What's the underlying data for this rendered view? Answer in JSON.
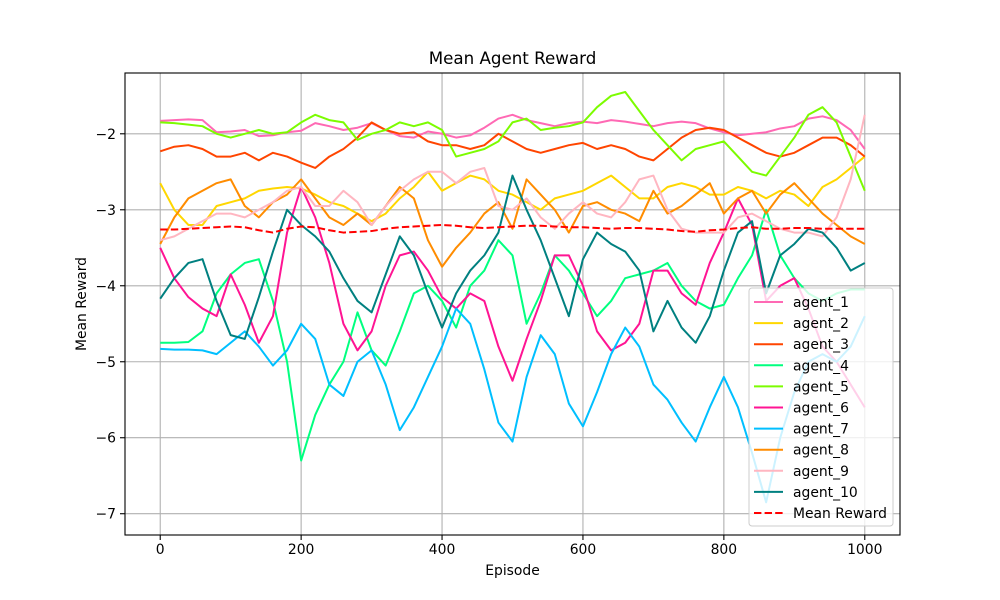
{
  "chart_data": {
    "type": "line",
    "title": "Mean Agent Reward",
    "xlabel": "Episode",
    "ylabel": "Mean Reward",
    "xlim": [
      -50,
      1050
    ],
    "ylim": [
      -7.28,
      -1.2
    ],
    "x_ticks": [
      0,
      200,
      400,
      600,
      800,
      1000
    ],
    "x_tick_labels": [
      "0",
      "200",
      "400",
      "600",
      "800",
      "1000"
    ],
    "y_ticks": [
      -7,
      -6,
      -5,
      -4,
      -3,
      -2
    ],
    "y_tick_labels": [
      "−7",
      "−6",
      "−5",
      "−4",
      "−3",
      "−2"
    ],
    "grid": true,
    "legend_position": "lower right",
    "x": [
      0,
      20,
      40,
      60,
      80,
      100,
      120,
      140,
      160,
      180,
      200,
      220,
      240,
      260,
      280,
      300,
      320,
      340,
      360,
      380,
      400,
      420,
      440,
      460,
      480,
      500,
      520,
      540,
      560,
      580,
      600,
      620,
      640,
      660,
      680,
      700,
      720,
      740,
      760,
      780,
      800,
      820,
      840,
      860,
      880,
      900,
      920,
      940,
      960,
      980,
      1000
    ],
    "series": [
      {
        "name": "agent_1",
        "color": "#ff69b4",
        "style": "solid",
        "values": [
          -1.83,
          -1.82,
          -1.81,
          -1.82,
          -1.98,
          -1.97,
          -1.95,
          -2.03,
          -2.02,
          -1.98,
          -1.96,
          -1.86,
          -1.9,
          -1.95,
          -1.92,
          -1.86,
          -1.95,
          -2.03,
          -2.05,
          -1.97,
          -2.0,
          -2.05,
          -2.02,
          -1.92,
          -1.8,
          -1.75,
          -1.82,
          -1.86,
          -1.9,
          -1.86,
          -1.84,
          -1.86,
          -1.82,
          -1.84,
          -1.87,
          -1.9,
          -1.86,
          -1.84,
          -1.86,
          -1.93,
          -1.98,
          -2.02,
          -2.0,
          -1.98,
          -1.93,
          -1.9,
          -1.8,
          -1.77,
          -1.82,
          -1.95,
          -2.2
        ]
      },
      {
        "name": "agent_2",
        "color": "#ffd700",
        "style": "solid",
        "values": [
          -2.65,
          -3.0,
          -3.2,
          -3.2,
          -2.95,
          -2.9,
          -2.85,
          -2.75,
          -2.72,
          -2.7,
          -2.72,
          -2.8,
          -2.9,
          -2.95,
          -3.05,
          -3.15,
          -3.05,
          -2.85,
          -2.7,
          -2.5,
          -2.75,
          -2.65,
          -2.55,
          -2.6,
          -2.75,
          -2.8,
          -2.9,
          -3.0,
          -2.85,
          -2.8,
          -2.75,
          -2.65,
          -2.55,
          -2.7,
          -2.85,
          -2.85,
          -2.7,
          -2.65,
          -2.7,
          -2.8,
          -2.8,
          -2.7,
          -2.75,
          -2.85,
          -2.75,
          -2.8,
          -2.95,
          -2.7,
          -2.6,
          -2.45,
          -2.3
        ]
      },
      {
        "name": "agent_3",
        "color": "#ff4500",
        "style": "solid",
        "values": [
          -2.23,
          -2.17,
          -2.15,
          -2.2,
          -2.3,
          -2.3,
          -2.25,
          -2.35,
          -2.25,
          -2.3,
          -2.38,
          -2.45,
          -2.3,
          -2.2,
          -2.05,
          -1.85,
          -1.95,
          -2.0,
          -1.98,
          -2.1,
          -2.15,
          -2.15,
          -2.2,
          -2.15,
          -2.0,
          -2.1,
          -2.2,
          -2.25,
          -2.2,
          -2.15,
          -2.12,
          -2.2,
          -2.15,
          -2.2,
          -2.3,
          -2.35,
          -2.2,
          -2.05,
          -1.95,
          -1.92,
          -1.95,
          -2.05,
          -2.15,
          -2.25,
          -2.3,
          -2.25,
          -2.15,
          -2.05,
          -2.05,
          -2.15,
          -2.3
        ]
      },
      {
        "name": "agent_4",
        "color": "#00ff7f",
        "style": "solid",
        "values": [
          -4.75,
          -4.75,
          -4.74,
          -4.6,
          -4.1,
          -3.85,
          -3.7,
          -3.65,
          -4.2,
          -5.0,
          -6.3,
          -5.7,
          -5.3,
          -5.0,
          -4.35,
          -4.85,
          -5.05,
          -4.6,
          -4.1,
          -4.0,
          -4.2,
          -4.55,
          -4.0,
          -3.8,
          -3.4,
          -3.6,
          -4.5,
          -4.1,
          -3.6,
          -3.8,
          -4.1,
          -4.4,
          -4.2,
          -3.9,
          -3.85,
          -3.8,
          -3.7,
          -4.0,
          -4.2,
          -4.3,
          -4.25,
          -3.9,
          -3.6,
          -3.0,
          -3.6,
          -3.9,
          -4.1,
          -4.2,
          -4.1,
          -4.05,
          -4.05
        ]
      },
      {
        "name": "agent_5",
        "color": "#7cfc00",
        "style": "solid",
        "values": [
          -1.85,
          -1.86,
          -1.88,
          -1.9,
          -2.0,
          -2.05,
          -2.0,
          -1.95,
          -2.0,
          -1.98,
          -1.85,
          -1.75,
          -1.82,
          -1.85,
          -2.08,
          -2.0,
          -1.95,
          -1.85,
          -1.9,
          -1.85,
          -1.95,
          -2.3,
          -2.25,
          -2.2,
          -2.1,
          -1.85,
          -1.8,
          -1.95,
          -1.92,
          -1.9,
          -1.85,
          -1.65,
          -1.5,
          -1.45,
          -1.7,
          -1.95,
          -2.15,
          -2.35,
          -2.2,
          -2.15,
          -2.1,
          -2.3,
          -2.5,
          -2.55,
          -2.3,
          -2.05,
          -1.75,
          -1.65,
          -1.85,
          -2.3,
          -2.75
        ]
      },
      {
        "name": "agent_6",
        "color": "#ff1493",
        "style": "solid",
        "values": [
          -3.5,
          -3.9,
          -4.15,
          -4.3,
          -4.4,
          -3.85,
          -4.25,
          -4.75,
          -4.4,
          -3.3,
          -2.7,
          -3.1,
          -3.7,
          -4.5,
          -4.85,
          -4.6,
          -4.0,
          -3.6,
          -3.55,
          -3.8,
          -4.15,
          -4.3,
          -4.1,
          -4.2,
          -4.8,
          -5.25,
          -4.7,
          -4.2,
          -3.6,
          -3.6,
          -4.0,
          -4.6,
          -4.85,
          -4.75,
          -4.5,
          -3.8,
          -3.8,
          -4.1,
          -4.25,
          -3.7,
          -3.3,
          -2.85,
          -3.2,
          -4.2,
          -4.0,
          -3.9,
          -4.3,
          -4.8,
          -5.0,
          -5.3,
          -5.6
        ]
      },
      {
        "name": "agent_7",
        "color": "#00bfff",
        "style": "solid",
        "values": [
          -4.83,
          -4.84,
          -4.84,
          -4.85,
          -4.9,
          -4.75,
          -4.6,
          -4.8,
          -5.05,
          -4.85,
          -4.5,
          -4.7,
          -5.3,
          -5.45,
          -5.0,
          -4.85,
          -5.3,
          -5.9,
          -5.6,
          -5.2,
          -4.8,
          -4.3,
          -4.5,
          -5.1,
          -5.8,
          -6.05,
          -5.2,
          -4.65,
          -4.9,
          -5.55,
          -5.85,
          -5.4,
          -4.9,
          -4.55,
          -4.8,
          -5.3,
          -5.5,
          -5.8,
          -6.05,
          -5.6,
          -5.2,
          -5.6,
          -6.2,
          -6.85,
          -6.0,
          -5.4,
          -5.0,
          -4.9,
          -5.0,
          -4.8,
          -4.4
        ]
      },
      {
        "name": "agent_8",
        "color": "#ff8c00",
        "style": "solid",
        "values": [
          -3.45,
          -3.1,
          -2.85,
          -2.75,
          -2.65,
          -2.6,
          -2.95,
          -3.1,
          -2.9,
          -2.8,
          -2.6,
          -2.85,
          -3.1,
          -3.2,
          -3.05,
          -3.2,
          -2.95,
          -2.7,
          -2.85,
          -3.4,
          -3.75,
          -3.5,
          -3.3,
          -3.05,
          -2.9,
          -3.25,
          -2.6,
          -2.8,
          -3.0,
          -3.3,
          -2.95,
          -2.9,
          -3.0,
          -3.05,
          -3.15,
          -2.75,
          -3.05,
          -2.95,
          -2.8,
          -2.65,
          -3.05,
          -2.85,
          -2.75,
          -3.05,
          -2.8,
          -2.65,
          -2.85,
          -3.05,
          -3.2,
          -3.35,
          -3.45
        ]
      },
      {
        "name": "agent_9",
        "color": "#ffb6c1",
        "style": "solid",
        "values": [
          -3.4,
          -3.35,
          -3.25,
          -3.15,
          -3.05,
          -3.05,
          -3.1,
          -3.0,
          -2.9,
          -2.75,
          -2.7,
          -2.95,
          -2.95,
          -2.75,
          -2.9,
          -3.2,
          -2.95,
          -2.75,
          -2.6,
          -2.5,
          -2.5,
          -2.65,
          -2.5,
          -2.45,
          -2.95,
          -3.0,
          -2.85,
          -3.1,
          -3.25,
          -3.05,
          -2.9,
          -3.05,
          -3.1,
          -2.9,
          -2.6,
          -2.55,
          -3.0,
          -3.25,
          -3.3,
          -3.3,
          -3.3,
          -3.1,
          -3.05,
          -3.15,
          -3.25,
          -3.3,
          -3.3,
          -3.35,
          -3.1,
          -2.6,
          -1.75
        ]
      },
      {
        "name": "agent_10",
        "color": "#008080",
        "style": "solid",
        "values": [
          -4.17,
          -3.9,
          -3.7,
          -3.65,
          -4.2,
          -4.65,
          -4.7,
          -4.15,
          -3.55,
          -3.0,
          -3.2,
          -3.35,
          -3.55,
          -3.9,
          -4.2,
          -4.35,
          -3.85,
          -3.35,
          -3.6,
          -4.1,
          -4.55,
          -4.1,
          -3.8,
          -3.6,
          -3.3,
          -2.55,
          -3.0,
          -3.4,
          -3.9,
          -4.4,
          -3.65,
          -3.3,
          -3.45,
          -3.55,
          -3.8,
          -4.6,
          -4.2,
          -4.55,
          -4.75,
          -4.4,
          -3.8,
          -3.3,
          -3.15,
          -4.1,
          -3.6,
          -3.45,
          -3.25,
          -3.3,
          -3.5,
          -3.8,
          -3.7
        ]
      },
      {
        "name": "Mean Reward",
        "color": "#ff0000",
        "style": "dashed",
        "values": [
          -3.26,
          -3.26,
          -3.25,
          -3.24,
          -3.23,
          -3.22,
          -3.23,
          -3.27,
          -3.3,
          -3.25,
          -3.22,
          -3.23,
          -3.27,
          -3.3,
          -3.29,
          -3.28,
          -3.25,
          -3.23,
          -3.22,
          -3.21,
          -3.2,
          -3.21,
          -3.23,
          -3.24,
          -3.23,
          -3.22,
          -3.21,
          -3.21,
          -3.22,
          -3.23,
          -3.23,
          -3.24,
          -3.25,
          -3.24,
          -3.24,
          -3.25,
          -3.26,
          -3.28,
          -3.29,
          -3.27,
          -3.26,
          -3.24,
          -3.23,
          -3.25,
          -3.25,
          -3.24,
          -3.24,
          -3.25,
          -3.25,
          -3.25,
          -3.25
        ]
      }
    ]
  }
}
